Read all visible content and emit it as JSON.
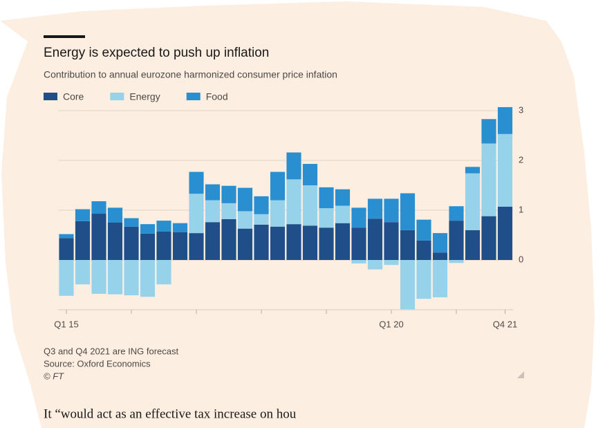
{
  "chart_data": {
    "type": "bar",
    "stacked": true,
    "title": "Energy is expected to push up inflation",
    "subtitle": "Contribution to annual eurozone harmonized consumer price infation",
    "categories": [
      "Q1 15",
      null,
      null,
      null,
      null,
      null,
      null,
      null,
      null,
      null,
      null,
      null,
      null,
      null,
      null,
      null,
      null,
      null,
      null,
      null,
      "Q1 20",
      null,
      null,
      null,
      null,
      null,
      null,
      "Q4 21"
    ],
    "series": [
      {
        "name": "Core",
        "color": "#1f4e89",
        "values": [
          0.44,
          0.78,
          0.93,
          0.75,
          0.67,
          0.53,
          0.57,
          0.56,
          0.54,
          0.76,
          0.82,
          0.63,
          0.71,
          0.67,
          0.72,
          0.69,
          0.65,
          0.74,
          0.65,
          0.83,
          0.76,
          0.6,
          0.39,
          0.15,
          0.79,
          0.6,
          0.88,
          1.07
        ]
      },
      {
        "name": "Energy",
        "color": "#96d2ea",
        "values": [
          -0.72,
          -0.49,
          -0.68,
          -0.69,
          -0.71,
          -0.74,
          -0.49,
          0,
          0.79,
          0.44,
          0.32,
          0.35,
          0.21,
          0.53,
          0.9,
          0.81,
          0.39,
          0.35,
          -0.07,
          -0.19,
          -0.1,
          -0.99,
          -0.78,
          -0.75,
          -0.06,
          1.14,
          1.46,
          1.46
        ]
      },
      {
        "name": "Food",
        "color": "#2a8fd0",
        "values": [
          0.08,
          0.24,
          0.25,
          0.3,
          0.17,
          0.19,
          0.22,
          0.18,
          0.44,
          0.32,
          0.35,
          0.47,
          0.36,
          0.57,
          0.54,
          0.43,
          0.42,
          0.33,
          0.4,
          0.4,
          0.47,
          0.74,
          0.42,
          0.39,
          0.29,
          0.13,
          0.49,
          0.54
        ]
      }
    ],
    "ylim": [
      -1,
      3.1
    ],
    "yticks": [
      0,
      1,
      2,
      3
    ],
    "grid": true,
    "notes": [
      "Q3 and Q4 2021 are ING forecast",
      "Source: Oxford Economics",
      "© FT"
    ]
  },
  "body_text": "It “would act as an effective tax increase on hou"
}
